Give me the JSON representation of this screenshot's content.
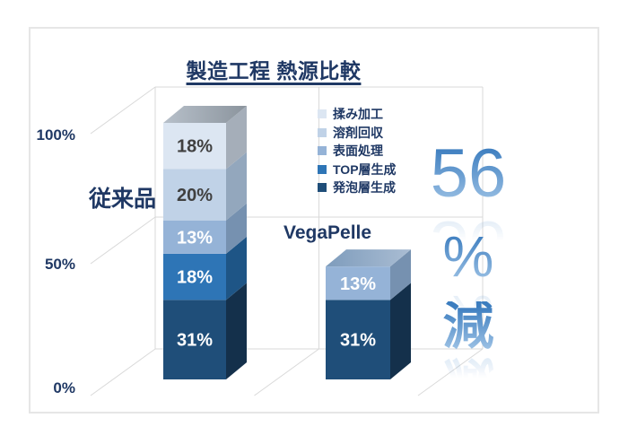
{
  "header": {
    "title": "製造工程 熱源比較"
  },
  "callout": {
    "value": "56",
    "unit": "%",
    "word": "減"
  },
  "chart_data": {
    "type": "bar",
    "subtype": "3d-stacked-column",
    "title": "製造工程 熱源比較",
    "categories": [
      "従来品",
      "VegaPelle"
    ],
    "unit": "%",
    "ylim": [
      0,
      100
    ],
    "yticks": [
      "0%",
      "50%",
      "100%"
    ],
    "legend_position": "right-top",
    "annotation": "56%減",
    "series": [
      {
        "name": "発泡層生成",
        "values": [
          31,
          31
        ],
        "color": "#1f4e79",
        "side_color": "#14304b",
        "label_color": "#ffffff"
      },
      {
        "name": "TOP層生成",
        "values": [
          18,
          0
        ],
        "color": "#2e75b6",
        "side_color": "#1e5586",
        "label_color": "#ffffff"
      },
      {
        "name": "表面処理",
        "values": [
          13,
          13
        ],
        "color": "#95b3d7",
        "side_color": "#7691b0",
        "label_color": "#ffffff",
        "top_from": "#7e9cbc",
        "top_to": "#aabdd3"
      },
      {
        "name": "溶剤回収",
        "values": [
          20,
          0
        ],
        "color": "#c0d2e7",
        "side_color": "#93a7bd",
        "label_color": "#404040"
      },
      {
        "name": "揉み加工",
        "values": [
          18,
          0
        ],
        "color": "#dce6f2",
        "side_color": "#a5aeb9",
        "label_color": "#404040",
        "top_from": "#b7c0ca",
        "top_to": "#8b949d"
      }
    ]
  }
}
